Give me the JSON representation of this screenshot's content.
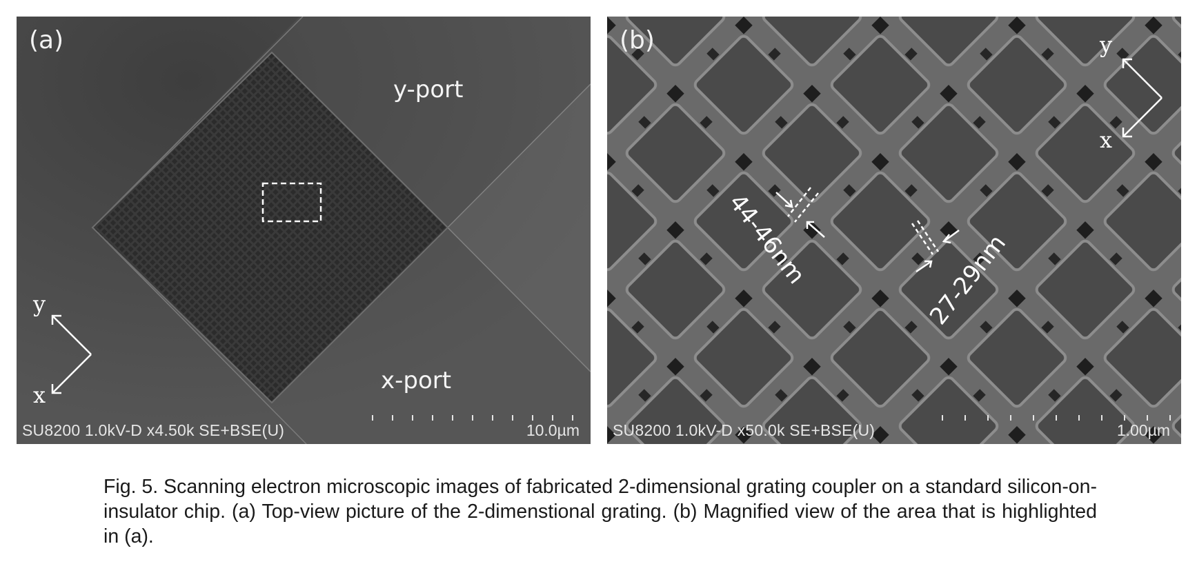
{
  "figure": {
    "panels": [
      {
        "label": "(a)",
        "ports": {
          "y": "y-port",
          "x": "x-port"
        },
        "axes": {
          "y": "y",
          "x": "x"
        },
        "sem_info": "SU8200 1.0kV-D x4.50k SE+BSE(U)",
        "scale_bar": "10.0µm"
      },
      {
        "label": "(b)",
        "measurements": [
          "44-46nm",
          "27-29nm"
        ],
        "axes": {
          "y": "y",
          "x": "x"
        },
        "sem_info": "SU8200 1.0kV-D x50.0k SE+BSE(U)",
        "scale_bar": "1.00µm"
      }
    ],
    "caption": "Fig. 5. Scanning electron microscopic images of fabricated 2-dimensional grating coupler on a standard silicon-on-insulator chip. (a) Top-view picture of the 2-dimenstional grating. (b) Magnified view of the area that is highlighted in (a)."
  },
  "colors": {
    "sem_background": "#4d4d4d",
    "annotation": "#ffffff",
    "caption_text": "#1a1a1a"
  }
}
